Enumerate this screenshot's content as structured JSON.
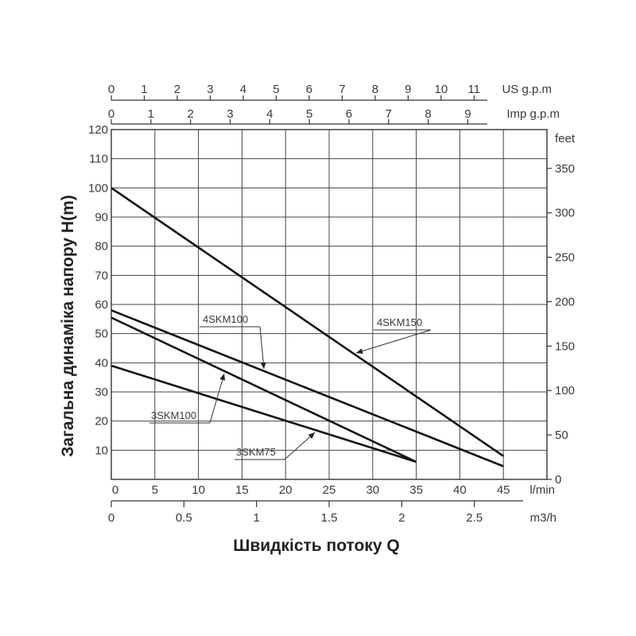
{
  "chart_data": {
    "type": "line",
    "xlabel": "Швидкість потоку Q",
    "ylabel": "Загальна динаміка напору H(m)",
    "x_unit": "l/min",
    "xlim": [
      0,
      50
    ],
    "ylim": [
      0,
      120
    ],
    "x_ticks": [
      "0",
      "5",
      "10",
      "15",
      "20",
      "25",
      "30",
      "35",
      "40",
      "45"
    ],
    "y_ticks": [
      "10",
      "20",
      "30",
      "40",
      "50",
      "60",
      "70",
      "80",
      "90",
      "100",
      "110",
      "120"
    ],
    "grid": true,
    "secondary_axes": {
      "right": {
        "unit": "feet",
        "ticks": [
          "0",
          "50",
          "100",
          "150",
          "200",
          "250",
          "300",
          "350"
        ]
      },
      "bottom": {
        "unit": "m3/h",
        "ticks": [
          "0",
          "0.5",
          "1",
          "1.5",
          "2",
          "2.5"
        ]
      },
      "top_imp": {
        "unit": "Imp g.p.m",
        "ticks": [
          "0",
          "1",
          "2",
          "3",
          "4",
          "5",
          "6",
          "7",
          "8",
          "9"
        ]
      },
      "top_us": {
        "unit": "US g.p.m",
        "ticks": [
          "0",
          "1",
          "2",
          "3",
          "4",
          "5",
          "6",
          "7",
          "8",
          "9",
          "10",
          "11"
        ]
      }
    },
    "series": [
      {
        "name": "4SKM150",
        "x": [
          0,
          45
        ],
        "y": [
          100,
          8
        ]
      },
      {
        "name": "4SKM100",
        "x": [
          0,
          45
        ],
        "y": [
          58,
          4.5
        ]
      },
      {
        "name": "3SKM100",
        "x": [
          0,
          35
        ],
        "y": [
          55.5,
          6
        ]
      },
      {
        "name": "3SKM75",
        "x": [
          0,
          35
        ],
        "y": [
          39,
          6
        ]
      }
    ]
  }
}
